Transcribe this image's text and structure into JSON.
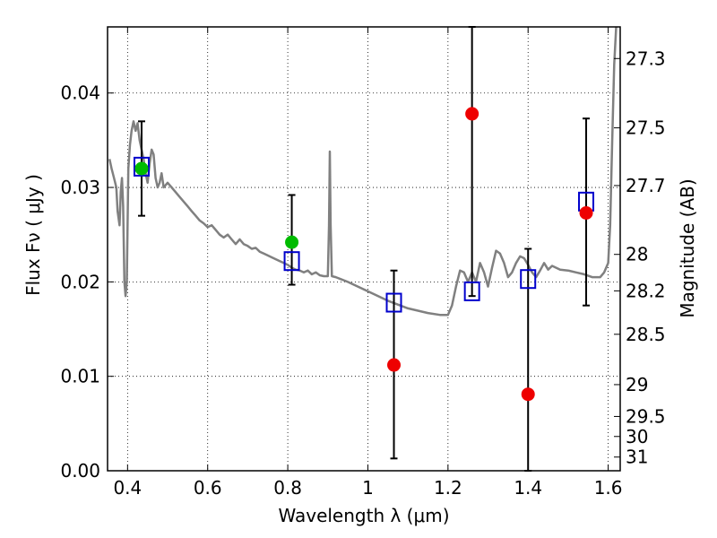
{
  "chart_data": {
    "type": "scatter",
    "xlabel": "Wavelength  λ (μm)",
    "ylabel": "Flux  Fν  ( μJy )",
    "ylabel_right": "Magnitude (AB)",
    "xlim": [
      0.35,
      1.63
    ],
    "ylim": [
      0.0,
      0.047
    ],
    "grid": true,
    "x_ticks": [
      {
        "value": 0.4,
        "label": "0.4"
      },
      {
        "value": 0.6,
        "label": "0.6"
      },
      {
        "value": 0.8,
        "label": "0.8"
      },
      {
        "value": 1.0,
        "label": "1"
      },
      {
        "value": 1.2,
        "label": "1.2"
      },
      {
        "value": 1.4,
        "label": "1.4"
      },
      {
        "value": 1.6,
        "label": "1.6"
      }
    ],
    "y_ticks": [
      {
        "value": 0.0,
        "label": "0.00"
      },
      {
        "value": 0.01,
        "label": "0.01"
      },
      {
        "value": 0.02,
        "label": "0.02"
      },
      {
        "value": 0.03,
        "label": "0.03"
      },
      {
        "value": 0.04,
        "label": "0.04"
      }
    ],
    "mag_ticks": [
      {
        "flux": 0.04365,
        "label": "27.3"
      },
      {
        "flux": 0.03631,
        "label": "27.5"
      },
      {
        "flux": 0.0302,
        "label": "27.7"
      },
      {
        "flux": 0.02291,
        "label": "28"
      },
      {
        "flux": 0.01905,
        "label": "28.2"
      },
      {
        "flux": 0.01445,
        "label": "28.5"
      },
      {
        "flux": 0.00912,
        "label": "29"
      },
      {
        "flux": 0.00575,
        "label": "29.5"
      },
      {
        "flux": 0.00363,
        "label": "30"
      },
      {
        "flux": 0.00145,
        "label": "31"
      }
    ],
    "model_spectrum": {
      "color": "#808080",
      "x": [
        0.355,
        0.36,
        0.366,
        0.372,
        0.375,
        0.38,
        0.383,
        0.386,
        0.389,
        0.392,
        0.395,
        0.398,
        0.402,
        0.406,
        0.41,
        0.415,
        0.42,
        0.425,
        0.43,
        0.435,
        0.44,
        0.445,
        0.45,
        0.455,
        0.46,
        0.465,
        0.47,
        0.475,
        0.48,
        0.485,
        0.49,
        0.5,
        0.51,
        0.52,
        0.53,
        0.54,
        0.55,
        0.56,
        0.57,
        0.58,
        0.59,
        0.6,
        0.61,
        0.62,
        0.63,
        0.64,
        0.65,
        0.66,
        0.67,
        0.68,
        0.69,
        0.7,
        0.71,
        0.72,
        0.73,
        0.74,
        0.75,
        0.76,
        0.77,
        0.78,
        0.79,
        0.8,
        0.81,
        0.82,
        0.83,
        0.84,
        0.85,
        0.86,
        0.87,
        0.88,
        0.89,
        0.9,
        0.903,
        0.905,
        0.907,
        0.91,
        0.92,
        0.95,
        1.0,
        1.05,
        1.1,
        1.15,
        1.18,
        1.2,
        1.21,
        1.22,
        1.23,
        1.24,
        1.25,
        1.26,
        1.27,
        1.28,
        1.29,
        1.3,
        1.31,
        1.32,
        1.33,
        1.34,
        1.35,
        1.36,
        1.37,
        1.38,
        1.39,
        1.4,
        1.41,
        1.42,
        1.43,
        1.44,
        1.45,
        1.46,
        1.48,
        1.5,
        1.52,
        1.54,
        1.56,
        1.58,
        1.59,
        1.6,
        1.605,
        1.61,
        1.615,
        1.62
      ],
      "y": [
        0.033,
        0.032,
        0.031,
        0.03,
        0.0275,
        0.026,
        0.0295,
        0.031,
        0.028,
        0.02,
        0.0185,
        0.02,
        0.032,
        0.0345,
        0.036,
        0.037,
        0.036,
        0.0368,
        0.035,
        0.034,
        0.033,
        0.0315,
        0.0305,
        0.0325,
        0.034,
        0.0335,
        0.031,
        0.03,
        0.0305,
        0.0315,
        0.03,
        0.0305,
        0.03,
        0.0295,
        0.029,
        0.0285,
        0.028,
        0.0275,
        0.027,
        0.0265,
        0.0262,
        0.0258,
        0.026,
        0.0255,
        0.025,
        0.0247,
        0.025,
        0.0245,
        0.024,
        0.0245,
        0.024,
        0.0238,
        0.0235,
        0.0236,
        0.0232,
        0.023,
        0.0228,
        0.0226,
        0.0224,
        0.0222,
        0.022,
        0.0218,
        0.0215,
        0.0213,
        0.0212,
        0.021,
        0.0212,
        0.0208,
        0.021,
        0.0207,
        0.0206,
        0.0206,
        0.026,
        0.0338,
        0.026,
        0.0206,
        0.0205,
        0.02,
        0.019,
        0.018,
        0.0172,
        0.0167,
        0.0165,
        0.0165,
        0.0175,
        0.0195,
        0.0212,
        0.021,
        0.02,
        0.021,
        0.02,
        0.022,
        0.021,
        0.0195,
        0.0215,
        0.0233,
        0.023,
        0.022,
        0.0205,
        0.021,
        0.022,
        0.0227,
        0.0225,
        0.0218,
        0.021,
        0.0205,
        0.0212,
        0.022,
        0.0213,
        0.0217,
        0.0213,
        0.0212,
        0.021,
        0.0208,
        0.0205,
        0.0205,
        0.021,
        0.022,
        0.026,
        0.035,
        0.043,
        0.047
      ]
    },
    "series": [
      {
        "marker": "open-square",
        "color": "#0000cc",
        "x": [
          0.435,
          0.81,
          1.065,
          1.26,
          1.4,
          1.545
        ],
        "y": [
          0.0322,
          0.0222,
          0.0178,
          0.019,
          0.0203,
          0.0285
        ]
      },
      {
        "marker": "filled-circle",
        "color": "#ee0000",
        "x": [
          1.065,
          1.26,
          1.4,
          1.545
        ],
        "y": [
          0.0112,
          0.0378,
          0.0081,
          0.0273
        ],
        "yerr_low": [
          0.0013,
          0.0185,
          0.0,
          0.0175
        ],
        "yerr_high": [
          0.0212,
          0.047,
          0.0235,
          0.0373
        ]
      },
      {
        "marker": "filled-circle",
        "color": "#00bb00",
        "x": [
          0.435,
          0.81
        ],
        "y": [
          0.032,
          0.0242
        ],
        "yerr_low": [
          0.027,
          0.0197
        ],
        "yerr_high": [
          0.037,
          0.0292
        ]
      }
    ]
  }
}
